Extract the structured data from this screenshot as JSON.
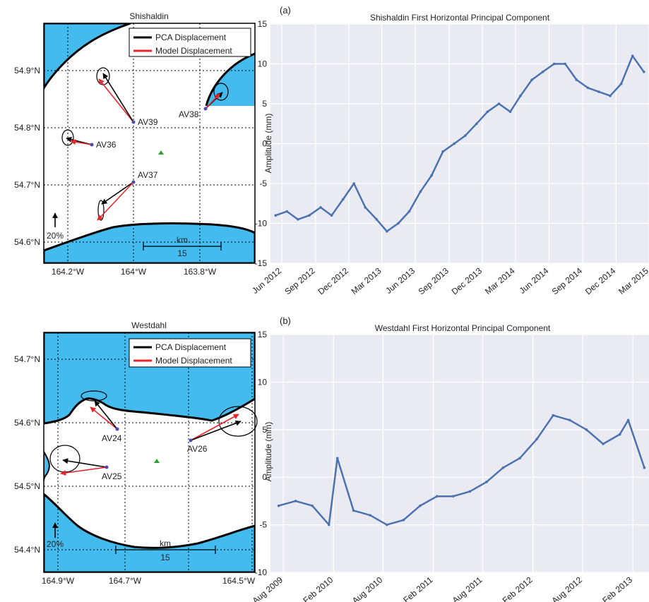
{
  "colors": {
    "ocean": "#44bbee",
    "land": "#ffffff",
    "pca": "#000000",
    "model": "#e8262b",
    "series": "#4c72b0",
    "plot_bg": "#eaeaf2",
    "grid": "#ffffff",
    "volcano": "#2ca02c",
    "station": "#4a4ab0"
  },
  "maps": [
    {
      "title": "Shishaldin",
      "legend": [
        "PCA Displacement",
        "Model Displacement"
      ],
      "lat_ticks": [
        "54.9°N",
        "54.8°N",
        "54.7°N",
        "54.6°N"
      ],
      "lon_ticks": [
        "164.2°W",
        "164°W",
        "163.8°W"
      ],
      "scale_unit": "km",
      "scale_value": "15",
      "ref_label": "20%",
      "stations": [
        "AV39",
        "AV38",
        "AV36",
        "AV37"
      ]
    },
    {
      "title": "Westdahl",
      "legend": [
        "PCA Displacement",
        "Model Displacement"
      ],
      "lat_ticks": [
        "54.7°N",
        "54.6°N",
        "54.5°N",
        "54.4°N"
      ],
      "lon_ticks": [
        "164.9°W",
        "164.7°W",
        "164.5°W"
      ],
      "scale_unit": "km",
      "scale_value": "15",
      "ref_label": "20%",
      "stations": [
        "AV24",
        "AV26",
        "AV25"
      ]
    }
  ],
  "chart_data": [
    {
      "type": "line",
      "panel": "(a)",
      "title": "Shishaldin First Horizontal Principal Component",
      "xlabel": "",
      "ylabel": "Amplitude (mm)",
      "ylim": [
        -15,
        15
      ],
      "yticks": [
        15,
        10,
        5,
        0,
        -5,
        -10,
        -15
      ],
      "xticks": [
        "Jun 2012",
        "Sep 2012",
        "Dec 2012",
        "Mar 2013",
        "Jun 2013",
        "Sep 2013",
        "Dec 2013",
        "Mar 2014",
        "Jun 2014",
        "Sep 2014",
        "Dec 2014",
        "Mar 2015"
      ],
      "x_range": [
        "2012-05-01",
        "2015-03-01"
      ],
      "grid": true,
      "series": [
        {
          "x": [
            "2012-05",
            "2012-06",
            "2012-07",
            "2012-08",
            "2012-09",
            "2012-10",
            "2012-11",
            "2012-12",
            "2013-01",
            "2013-02",
            "2013-03",
            "2013-04",
            "2013-05",
            "2013-06",
            "2013-07",
            "2013-08",
            "2013-09",
            "2013-10",
            "2013-11",
            "2013-12",
            "2014-01",
            "2014-02",
            "2014-03",
            "2014-04",
            "2014-05",
            "2014-06",
            "2014-07",
            "2014-08",
            "2014-09",
            "2014-10",
            "2014-11",
            "2014-12",
            "2015-01",
            "2015-02"
          ],
          "values": [
            -9,
            -8.5,
            -9.5,
            -9,
            -8,
            -9,
            -7,
            -5,
            -8,
            -9.5,
            -11,
            -10,
            -8.5,
            -6,
            -4,
            -1,
            0,
            1,
            2.5,
            4,
            5,
            4,
            6,
            8,
            9,
            10,
            10,
            8,
            7,
            6.5,
            6,
            7.5,
            11,
            9
          ]
        }
      ]
    },
    {
      "type": "line",
      "panel": "(b)",
      "title": "Westdahl First Horizontal Principal Component",
      "xlabel": "",
      "ylabel": "Amplitude (mm)",
      "ylim": [
        -10,
        15
      ],
      "yticks": [
        15,
        10,
        5,
        0,
        -5,
        -10
      ],
      "xticks": [
        "Aug 2009",
        "Feb 2010",
        "Aug 2010",
        "Feb 2011",
        "Aug 2011",
        "Feb 2012",
        "Aug 2012",
        "Feb 2013"
      ],
      "x_range": [
        "2009-06-15",
        "2013-04-01"
      ],
      "grid": true,
      "series": [
        {
          "x": [
            "2009-07",
            "2009-09",
            "2009-11",
            "2010-01",
            "2010-02",
            "2010-04",
            "2010-06",
            "2010-08",
            "2010-10",
            "2010-12",
            "2011-02",
            "2011-04",
            "2011-06",
            "2011-08",
            "2011-10",
            "2011-12",
            "2012-02",
            "2012-04",
            "2012-06",
            "2012-08",
            "2012-10",
            "2012-12",
            "2013-01",
            "2013-03"
          ],
          "values": [
            -3,
            -2.5,
            -3,
            -5,
            2,
            -3.5,
            -4,
            -5,
            -4.5,
            -3,
            -2,
            -2,
            -1.5,
            -0.5,
            1,
            2,
            4,
            6.5,
            6,
            5,
            3.5,
            4.5,
            6,
            1
          ]
        }
      ]
    }
  ]
}
